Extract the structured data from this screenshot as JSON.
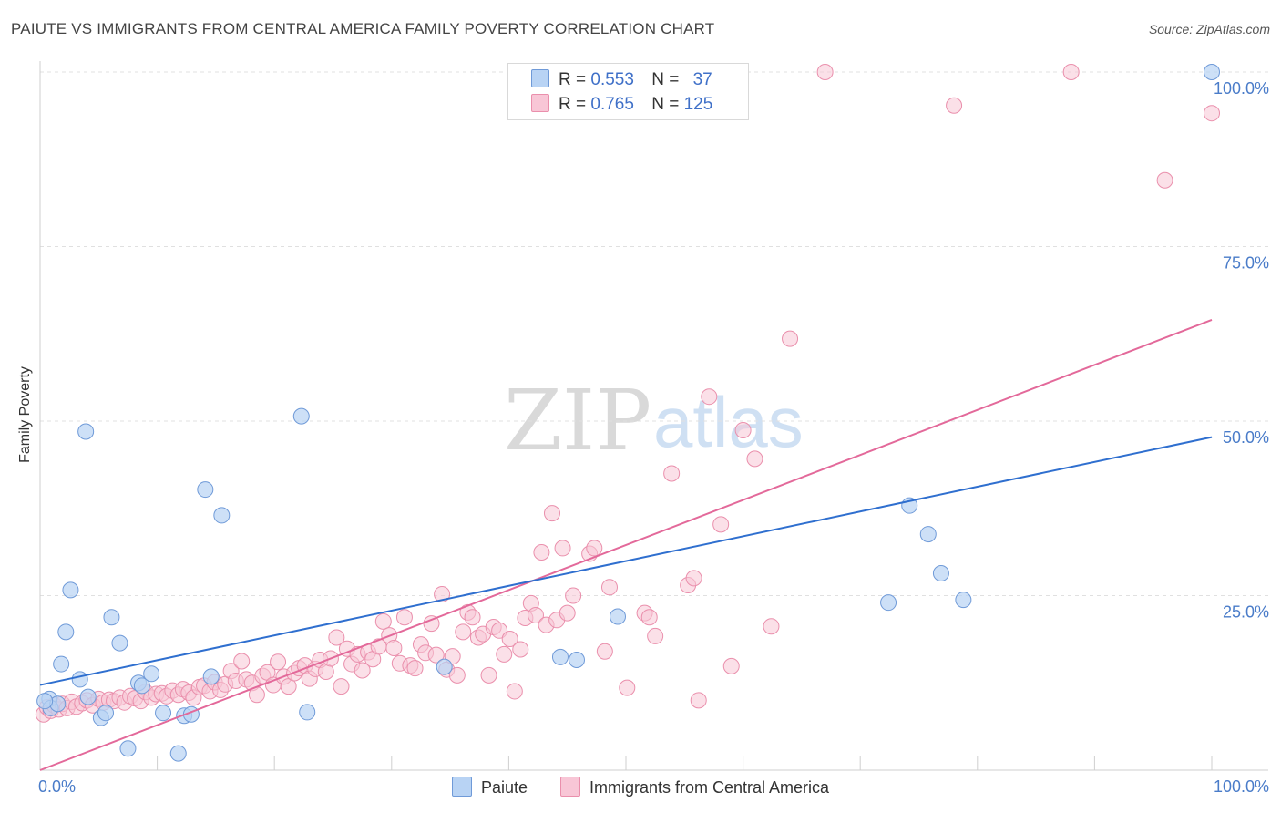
{
  "title": "PAIUTE VS IMMIGRANTS FROM CENTRAL AMERICA FAMILY POVERTY CORRELATION CHART",
  "source": "Source: ZipAtlas.com",
  "watermark": {
    "zip": "ZIP",
    "atlas": "atlas"
  },
  "legend": {
    "paiute": {
      "r_label": "R =",
      "r_value": "0.553",
      "n_label": "N =",
      "n_value": "37"
    },
    "central_america": {
      "r_label": "R =",
      "r_value": "0.765",
      "n_label": "N =",
      "n_value": "125"
    }
  },
  "colors": {
    "paiute_fill": "#b8d3f4",
    "paiute_stroke": "#6f9ad8",
    "paiute_line": "#2f6fcf",
    "ca_fill": "#f8c6d6",
    "ca_stroke": "#ea8fac",
    "ca_line": "#e3699a",
    "tick": "#4a7cc9",
    "grid": "#e0e0e0"
  },
  "chart_data": {
    "type": "scatter",
    "title": "PAIUTE VS IMMIGRANTS FROM CENTRAL AMERICA FAMILY POVERTY CORRELATION CHART",
    "xlabel": "",
    "ylabel": "Family Poverty",
    "xlim": [
      0,
      100
    ],
    "ylim": [
      0,
      100
    ],
    "x_tick_labels": [
      "0.0%",
      "100.0%"
    ],
    "y_tick_labels": [
      "25.0%",
      "50.0%",
      "75.0%",
      "100.0%"
    ],
    "y_ticks": [
      25,
      50,
      75,
      100
    ],
    "grid": true,
    "legend_position": "top-center",
    "series": [
      {
        "name": "Paiute",
        "r": 0.553,
        "n": 37,
        "trend": {
          "x": [
            0,
            100
          ],
          "y": [
            12.2,
            47.7
          ]
        },
        "points": [
          [
            0.8,
            10.2
          ],
          [
            0.9,
            8.9
          ],
          [
            1.5,
            9.5
          ],
          [
            1.8,
            15.2
          ],
          [
            2.2,
            19.8
          ],
          [
            2.6,
            25.8
          ],
          [
            3.4,
            13.0
          ],
          [
            3.9,
            48.5
          ],
          [
            4.1,
            10.5
          ],
          [
            5.2,
            7.5
          ],
          [
            5.6,
            8.2
          ],
          [
            6.1,
            21.9
          ],
          [
            6.8,
            18.2
          ],
          [
            7.5,
            3.1
          ],
          [
            8.4,
            12.5
          ],
          [
            8.7,
            12.1
          ],
          [
            9.5,
            13.8
          ],
          [
            10.5,
            8.2
          ],
          [
            11.8,
            2.4
          ],
          [
            12.3,
            7.8
          ],
          [
            12.9,
            8.0
          ],
          [
            14.1,
            40.2
          ],
          [
            14.6,
            13.4
          ],
          [
            15.5,
            36.5
          ],
          [
            22.3,
            50.7
          ],
          [
            22.8,
            8.3
          ],
          [
            34.5,
            14.8
          ],
          [
            44.4,
            16.2
          ],
          [
            45.8,
            15.8
          ],
          [
            49.3,
            22.0
          ],
          [
            72.4,
            24.0
          ],
          [
            74.2,
            37.9
          ],
          [
            75.8,
            33.8
          ],
          [
            76.9,
            28.2
          ],
          [
            78.8,
            24.4
          ],
          [
            100.0,
            100.0
          ],
          [
            0.4,
            9.9
          ]
        ]
      },
      {
        "name": "Immigrants from Central America",
        "r": 0.765,
        "n": 125,
        "trend": {
          "x": [
            0,
            100
          ],
          "y": [
            0.0,
            64.5
          ]
        },
        "points": [
          [
            0.3,
            8.0
          ],
          [
            0.6,
            9.0
          ],
          [
            0.9,
            8.5
          ],
          [
            1.2,
            9.3
          ],
          [
            1.6,
            8.7
          ],
          [
            1.9,
            9.5
          ],
          [
            2.3,
            8.9
          ],
          [
            2.7,
            9.8
          ],
          [
            3.1,
            9.1
          ],
          [
            3.6,
            9.6
          ],
          [
            4.0,
            10.0
          ],
          [
            4.5,
            9.3
          ],
          [
            5.0,
            10.2
          ],
          [
            5.4,
            9.7
          ],
          [
            5.9,
            10.1
          ],
          [
            6.3,
            9.9
          ],
          [
            6.8,
            10.4
          ],
          [
            7.2,
            9.7
          ],
          [
            7.7,
            10.6
          ],
          [
            8.1,
            10.3
          ],
          [
            8.6,
            9.9
          ],
          [
            9.0,
            11.2
          ],
          [
            9.5,
            10.4
          ],
          [
            9.9,
            10.9
          ],
          [
            10.4,
            11.0
          ],
          [
            10.8,
            10.6
          ],
          [
            11.3,
            11.4
          ],
          [
            11.8,
            10.8
          ],
          [
            12.2,
            11.6
          ],
          [
            12.7,
            11.1
          ],
          [
            13.1,
            10.4
          ],
          [
            13.6,
            11.9
          ],
          [
            14.0,
            12.1
          ],
          [
            14.5,
            11.3
          ],
          [
            14.9,
            12.6
          ],
          [
            15.4,
            11.5
          ],
          [
            15.8,
            12.3
          ],
          [
            16.3,
            14.2
          ],
          [
            16.7,
            12.8
          ],
          [
            17.2,
            15.6
          ],
          [
            17.6,
            13.0
          ],
          [
            18.1,
            12.5
          ],
          [
            18.5,
            10.8
          ],
          [
            19.0,
            13.5
          ],
          [
            19.4,
            14.0
          ],
          [
            19.9,
            12.2
          ],
          [
            20.3,
            15.5
          ],
          [
            20.8,
            13.4
          ],
          [
            21.2,
            12.0
          ],
          [
            21.7,
            13.9
          ],
          [
            22.1,
            14.6
          ],
          [
            22.6,
            15.0
          ],
          [
            23.0,
            13.1
          ],
          [
            23.5,
            14.5
          ],
          [
            23.9,
            15.8
          ],
          [
            24.4,
            14.1
          ],
          [
            24.8,
            16.0
          ],
          [
            25.3,
            19.0
          ],
          [
            25.7,
            12.0
          ],
          [
            26.2,
            17.4
          ],
          [
            26.6,
            15.2
          ],
          [
            27.1,
            16.6
          ],
          [
            27.5,
            14.3
          ],
          [
            28.0,
            16.9
          ],
          [
            28.4,
            15.9
          ],
          [
            28.9,
            17.7
          ],
          [
            29.3,
            21.3
          ],
          [
            29.8,
            19.3
          ],
          [
            30.2,
            17.5
          ],
          [
            30.7,
            15.3
          ],
          [
            31.1,
            21.9
          ],
          [
            31.6,
            15.0
          ],
          [
            32.0,
            14.6
          ],
          [
            32.5,
            18.0
          ],
          [
            32.9,
            16.8
          ],
          [
            33.4,
            21.0
          ],
          [
            33.8,
            16.5
          ],
          [
            34.3,
            25.2
          ],
          [
            34.7,
            14.4
          ],
          [
            35.2,
            16.3
          ],
          [
            35.6,
            13.6
          ],
          [
            36.1,
            19.8
          ],
          [
            36.5,
            22.6
          ],
          [
            36.9,
            21.9
          ],
          [
            37.4,
            19.0
          ],
          [
            37.8,
            19.5
          ],
          [
            38.3,
            13.6
          ],
          [
            38.7,
            20.5
          ],
          [
            39.2,
            20.0
          ],
          [
            39.6,
            16.6
          ],
          [
            40.1,
            18.8
          ],
          [
            40.5,
            11.3
          ],
          [
            41.0,
            17.3
          ],
          [
            41.4,
            21.8
          ],
          [
            41.9,
            23.9
          ],
          [
            42.3,
            22.2
          ],
          [
            42.8,
            31.2
          ],
          [
            43.2,
            20.8
          ],
          [
            43.7,
            36.8
          ],
          [
            44.1,
            21.5
          ],
          [
            44.6,
            31.8
          ],
          [
            45.0,
            22.5
          ],
          [
            45.5,
            25.0
          ],
          [
            46.9,
            31.0
          ],
          [
            47.3,
            31.8
          ],
          [
            48.2,
            17.0
          ],
          [
            48.6,
            26.2
          ],
          [
            50.1,
            11.8
          ],
          [
            51.6,
            22.5
          ],
          [
            52.0,
            21.9
          ],
          [
            52.5,
            19.2
          ],
          [
            53.9,
            42.5
          ],
          [
            55.3,
            26.5
          ],
          [
            55.8,
            27.5
          ],
          [
            56.2,
            10.0
          ],
          [
            57.1,
            53.5
          ],
          [
            58.1,
            35.2
          ],
          [
            60.0,
            48.7
          ],
          [
            61.0,
            44.6
          ],
          [
            62.4,
            20.6
          ],
          [
            64.0,
            61.8
          ],
          [
            67.0,
            100.0
          ],
          [
            78.0,
            95.2
          ],
          [
            88.0,
            100.0
          ],
          [
            96.0,
            84.5
          ],
          [
            100.0,
            94.1
          ],
          [
            59.0,
            14.9
          ]
        ]
      }
    ]
  },
  "bottom_legend": {
    "paiute": "Paiute",
    "central_america": "Immigrants from Central America"
  }
}
